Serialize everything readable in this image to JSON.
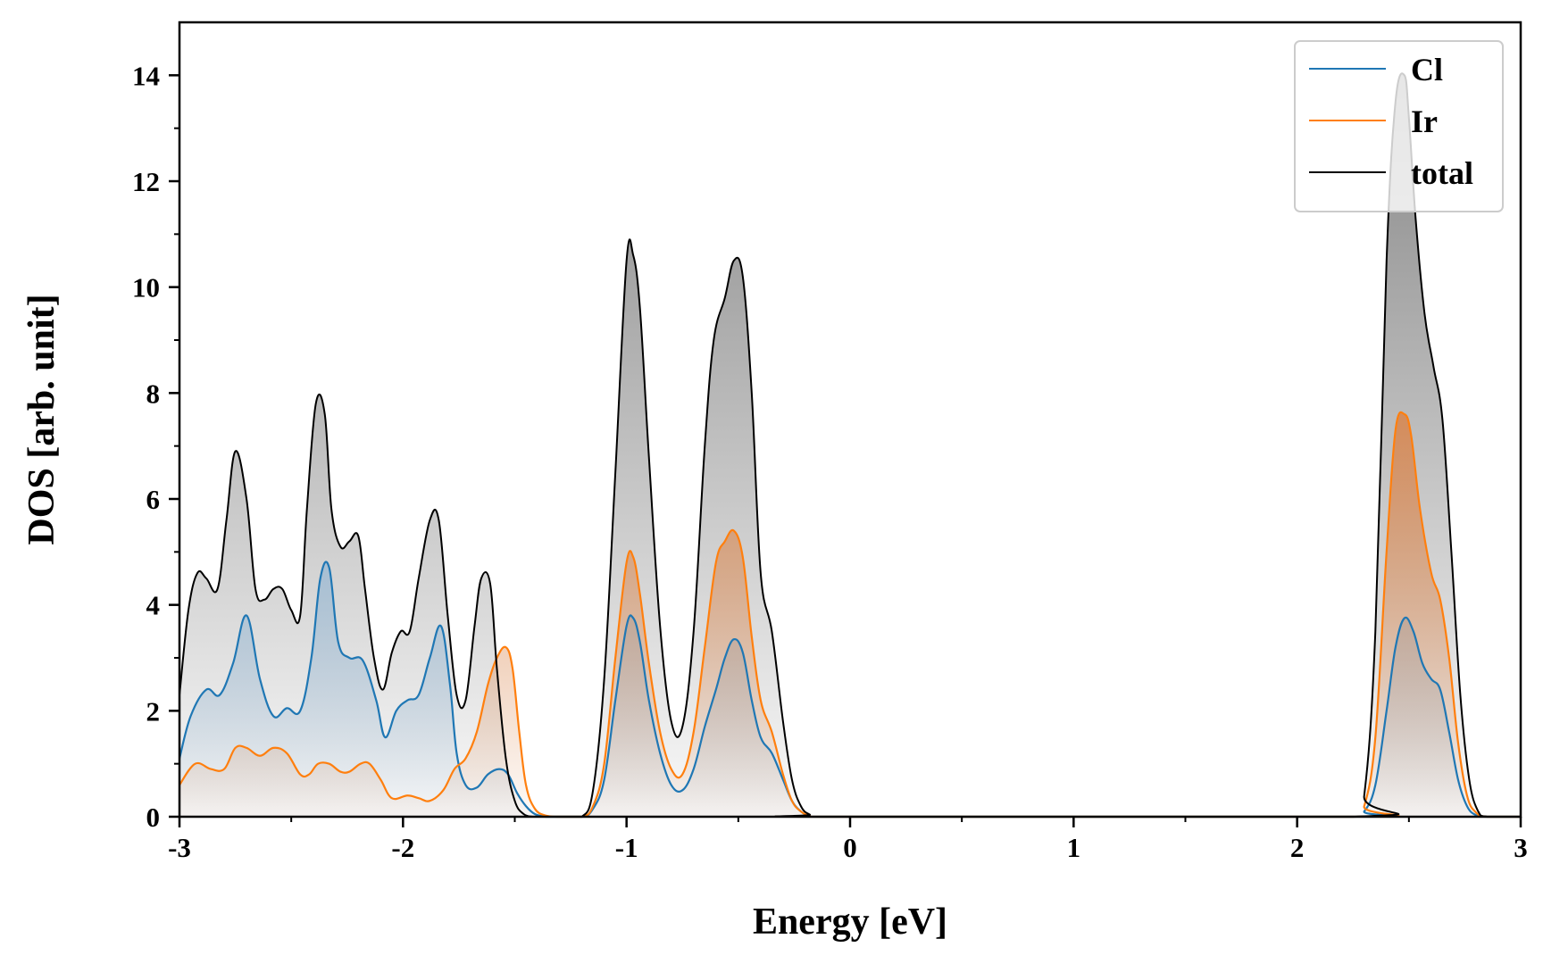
{
  "chart_data": {
    "type": "area",
    "xlabel": "Energy [eV]",
    "ylabel": "DOS [arb. unit]",
    "xlim": [
      -3,
      3
    ],
    "ylim": [
      0,
      15
    ],
    "xticks": [
      -3,
      -2,
      -1,
      0,
      1,
      2,
      3
    ],
    "xtick_labels": [
      "-3",
      "-2",
      "-1",
      "0",
      "1",
      "2",
      "3"
    ],
    "yticks": [
      0,
      2,
      4,
      6,
      8,
      10,
      12,
      14
    ],
    "ytick_labels": [
      "0",
      "2",
      "4",
      "6",
      "8",
      "10",
      "12",
      "14"
    ],
    "grid": false,
    "legend_position": "top-right",
    "series": [
      {
        "name": "Cl",
        "color": "#1f77b4",
        "fill_tint": "#9fbbd3",
        "x": [
          -3.0,
          -2.95,
          -2.88,
          -2.82,
          -2.76,
          -2.7,
          -2.64,
          -2.58,
          -2.52,
          -2.46,
          -2.41,
          -2.37,
          -2.33,
          -2.29,
          -2.24,
          -2.18,
          -2.12,
          -2.08,
          -2.03,
          -1.98,
          -1.93,
          -1.88,
          -1.83,
          -1.79,
          -1.76,
          -1.72,
          -1.67,
          -1.62,
          -1.57,
          -1.53,
          -1.49,
          -1.45,
          -1.41,
          -1.36,
          -1.31,
          -1.2,
          -1.15,
          -1.1,
          -1.05,
          -1.0,
          -0.97,
          -0.94,
          -0.9,
          -0.85,
          -0.8,
          -0.75,
          -0.7,
          -0.65,
          -0.6,
          -0.56,
          -0.52,
          -0.48,
          -0.44,
          -0.4,
          -0.35,
          -0.3,
          -0.26,
          -0.22,
          -0.18,
          -0.13,
          2.25,
          2.3,
          2.35,
          2.4,
          2.44,
          2.48,
          2.52,
          2.56,
          2.6,
          2.64,
          2.68,
          2.72,
          2.76,
          2.8,
          2.85,
          3.0
        ],
        "values": [
          1.1,
          1.9,
          2.4,
          2.3,
          2.9,
          3.8,
          2.6,
          1.9,
          2.05,
          2.0,
          3.0,
          4.5,
          4.7,
          3.3,
          3.0,
          2.95,
          2.2,
          1.5,
          2.0,
          2.2,
          2.3,
          3.0,
          3.6,
          2.5,
          1.2,
          0.6,
          0.55,
          0.8,
          0.9,
          0.8,
          0.45,
          0.2,
          0.05,
          0.0,
          0.0,
          0.0,
          0.15,
          0.7,
          2.2,
          3.6,
          3.75,
          3.3,
          2.2,
          1.2,
          0.6,
          0.5,
          0.9,
          1.7,
          2.4,
          3.0,
          3.35,
          3.1,
          2.2,
          1.5,
          1.2,
          0.7,
          0.3,
          0.1,
          0.02,
          0.0,
          0.0,
          0.1,
          0.6,
          2.0,
          3.2,
          3.75,
          3.5,
          2.9,
          2.6,
          2.4,
          1.6,
          0.7,
          0.2,
          0.03,
          0.0,
          0.0
        ]
      },
      {
        "name": "Ir",
        "color": "#ff7f0e",
        "fill_tint": "#d9844a",
        "x": [
          -3.0,
          -2.93,
          -2.86,
          -2.8,
          -2.75,
          -2.7,
          -2.64,
          -2.58,
          -2.52,
          -2.46,
          -2.42,
          -2.38,
          -2.33,
          -2.28,
          -2.24,
          -2.19,
          -2.15,
          -2.1,
          -2.05,
          -1.98,
          -1.93,
          -1.88,
          -1.82,
          -1.77,
          -1.72,
          -1.67,
          -1.62,
          -1.58,
          -1.54,
          -1.51,
          -1.48,
          -1.45,
          -1.41,
          -1.36,
          -1.31,
          -1.2,
          -1.15,
          -1.1,
          -1.05,
          -1.0,
          -0.97,
          -0.94,
          -0.9,
          -0.85,
          -0.8,
          -0.75,
          -0.7,
          -0.65,
          -0.6,
          -0.56,
          -0.52,
          -0.48,
          -0.44,
          -0.4,
          -0.35,
          -0.3,
          -0.26,
          -0.22,
          -0.18,
          -0.13,
          2.25,
          2.3,
          2.35,
          2.4,
          2.44,
          2.48,
          2.51,
          2.55,
          2.6,
          2.64,
          2.68,
          2.72,
          2.76,
          2.8,
          2.85,
          3.0
        ],
        "values": [
          0.6,
          1.0,
          0.9,
          0.9,
          1.3,
          1.3,
          1.15,
          1.3,
          1.2,
          0.8,
          0.8,
          1.0,
          1.0,
          0.85,
          0.85,
          1.0,
          1.0,
          0.7,
          0.35,
          0.4,
          0.35,
          0.3,
          0.5,
          0.9,
          1.1,
          1.6,
          2.5,
          3.0,
          3.2,
          2.8,
          1.6,
          0.6,
          0.15,
          0.02,
          0.0,
          0.0,
          0.2,
          1.0,
          3.0,
          4.8,
          4.9,
          4.2,
          2.9,
          1.6,
          0.9,
          0.8,
          1.6,
          3.2,
          4.8,
          5.2,
          5.4,
          4.9,
          3.4,
          2.2,
          1.6,
          0.8,
          0.3,
          0.1,
          0.02,
          0.0,
          0.0,
          0.2,
          1.5,
          5.0,
          7.3,
          7.6,
          7.2,
          5.8,
          4.6,
          4.1,
          3.0,
          1.4,
          0.4,
          0.08,
          0.0,
          0.0
        ]
      },
      {
        "name": "total",
        "color": "#000000",
        "fill_tint": "#7f7f7f",
        "x": [
          -3.0,
          -2.96,
          -2.92,
          -2.88,
          -2.83,
          -2.79,
          -2.75,
          -2.7,
          -2.66,
          -2.62,
          -2.58,
          -2.54,
          -2.5,
          -2.46,
          -2.43,
          -2.39,
          -2.35,
          -2.32,
          -2.28,
          -2.24,
          -2.2,
          -2.17,
          -2.13,
          -2.09,
          -2.05,
          -2.01,
          -1.97,
          -1.93,
          -1.88,
          -1.84,
          -1.8,
          -1.76,
          -1.72,
          -1.68,
          -1.65,
          -1.61,
          -1.58,
          -1.54,
          -1.5,
          -1.46,
          -1.42,
          -1.38,
          -1.33,
          -1.28,
          -1.2,
          -1.15,
          -1.1,
          -1.05,
          -1.0,
          -0.97,
          -0.94,
          -0.9,
          -0.85,
          -0.8,
          -0.75,
          -0.7,
          -0.65,
          -0.61,
          -0.56,
          -0.52,
          -0.48,
          -0.44,
          -0.4,
          -0.35,
          -0.3,
          -0.26,
          -0.22,
          -0.18,
          -0.13,
          2.25,
          2.3,
          2.35,
          2.4,
          2.44,
          2.48,
          2.5,
          2.53,
          2.57,
          2.61,
          2.65,
          2.69,
          2.73,
          2.77,
          2.81,
          2.85,
          3.0
        ],
        "values": [
          2.3,
          3.9,
          4.6,
          4.5,
          4.3,
          5.6,
          6.9,
          6.0,
          4.3,
          4.1,
          4.3,
          4.3,
          3.9,
          3.8,
          5.8,
          7.8,
          7.6,
          5.8,
          5.1,
          5.2,
          5.3,
          4.3,
          3.0,
          2.4,
          3.1,
          3.5,
          3.5,
          4.5,
          5.6,
          5.6,
          3.8,
          2.3,
          2.2,
          3.6,
          4.5,
          4.4,
          2.8,
          1.1,
          0.3,
          0.05,
          0.0,
          0.0,
          0.0,
          0.0,
          0.0,
          0.5,
          2.6,
          6.5,
          10.5,
          10.6,
          9.6,
          6.8,
          3.6,
          1.8,
          1.7,
          3.5,
          7.0,
          9.0,
          9.8,
          10.5,
          10.2,
          8.0,
          4.6,
          3.5,
          1.8,
          0.7,
          0.2,
          0.04,
          0.0,
          0.0,
          0.4,
          3.5,
          10.5,
          13.5,
          14.0,
          13.2,
          11.3,
          9.5,
          8.5,
          7.5,
          5.0,
          2.3,
          0.7,
          0.1,
          0.0,
          0.0
        ]
      }
    ]
  }
}
